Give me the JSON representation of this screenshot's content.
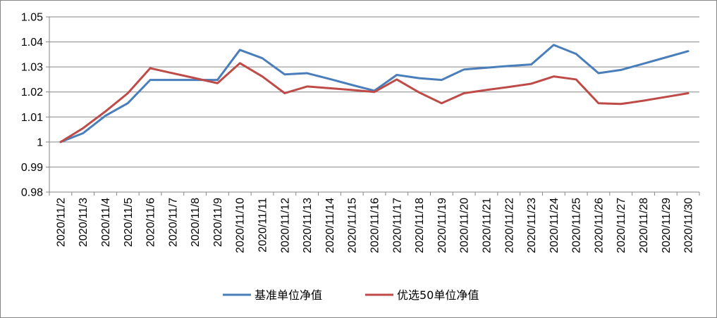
{
  "chart_data": {
    "type": "line",
    "title": "",
    "xlabel": "",
    "ylabel": "",
    "ylim": [
      0.98,
      1.05
    ],
    "y_ticks": [
      "0.98",
      "0.99",
      "1",
      "1.01",
      "1.02",
      "1.03",
      "1.04",
      "1.05"
    ],
    "y_tick_values": [
      0.98,
      0.99,
      1.0,
      1.01,
      1.02,
      1.03,
      1.04,
      1.05
    ],
    "grid": "horizontal",
    "legend_position": "bottom",
    "categories": [
      "2020/11/2",
      "2020/11/3",
      "2020/11/4",
      "2020/11/5",
      "2020/11/6",
      "2020/11/7",
      "2020/11/8",
      "2020/11/9",
      "2020/11/10",
      "2020/11/11",
      "2020/11/12",
      "2020/11/13",
      "2020/11/14",
      "2020/11/15",
      "2020/11/16",
      "2020/11/17",
      "2020/11/18",
      "2020/11/19",
      "2020/11/20",
      "2020/11/21",
      "2020/11/22",
      "2020/11/23",
      "2020/11/24",
      "2020/11/25",
      "2020/11/26",
      "2020/11/27",
      "2020/11/28",
      "2020/11/29",
      "2020/11/30"
    ],
    "series": [
      {
        "name": "基准单位净值",
        "color": "#4a7ebb",
        "values": [
          1.0,
          1.0035,
          1.0105,
          1.0155,
          1.0248,
          1.0248,
          1.0248,
          1.0248,
          1.0368,
          1.0335,
          1.027,
          1.0275,
          1.0252,
          1.0228,
          1.0205,
          1.0268,
          1.0255,
          1.0248,
          1.029,
          1.0297,
          1.0304,
          1.031,
          1.0388,
          1.0352,
          1.0275,
          1.0288,
          1.0313,
          1.0338,
          1.0363
        ]
      },
      {
        "name": "优选50单位净值",
        "color": "#be4b48",
        "values": [
          1.0,
          1.0055,
          1.0122,
          1.0195,
          1.0295,
          1.0275,
          1.0255,
          1.0235,
          1.0315,
          1.0262,
          1.0195,
          1.0222,
          1.0215,
          1.0208,
          1.02,
          1.025,
          1.0198,
          1.0155,
          1.0195,
          1.0208,
          1.022,
          1.0233,
          1.0262,
          1.025,
          1.0155,
          1.0152,
          1.0165,
          1.018,
          1.0195
        ]
      }
    ]
  }
}
